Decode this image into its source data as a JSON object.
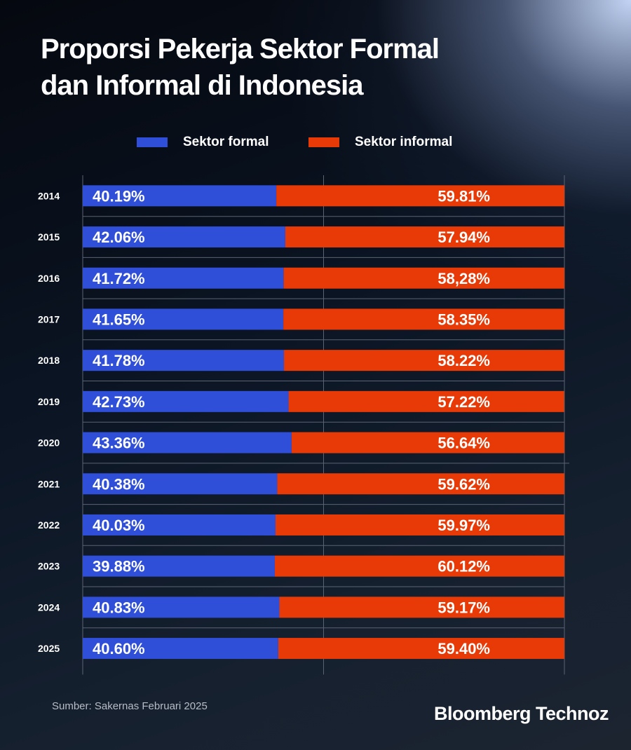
{
  "chart_data": {
    "type": "bar",
    "orientation": "horizontal",
    "stacked": true,
    "title": "Proporsi Pekerja Sektor Formal dan Informal di Indonesia",
    "title_lines": [
      "Proporsi Pekerja Sektor Formal",
      "dan Informal di Indonesia"
    ],
    "categories": [
      "2014",
      "2015",
      "2016",
      "2017",
      "2018",
      "2019",
      "2020",
      "2021",
      "2022",
      "2023",
      "2024",
      "2025"
    ],
    "series": [
      {
        "name": "Sektor formal",
        "color": "#2f4fd8",
        "values": [
          40.19,
          42.06,
          41.72,
          41.65,
          41.78,
          42.73,
          43.36,
          40.38,
          40.03,
          39.88,
          40.83,
          40.6
        ],
        "labels": [
          "40.19%",
          "42.06%",
          "41.72%",
          "41.65%",
          "41.78%",
          "42.73%",
          "43.36%",
          "40.38%",
          "40.03%",
          "39.88%",
          "40.83%",
          "40.60%"
        ]
      },
      {
        "name": "Sektor informal",
        "color": "#e83a06",
        "values": [
          59.81,
          57.94,
          58.28,
          58.35,
          58.22,
          57.22,
          56.64,
          59.62,
          59.97,
          60.12,
          59.17,
          59.4
        ],
        "labels": [
          "59.81%",
          "57.94%",
          "58,28%",
          "58.35%",
          "58.22%",
          "57.22%",
          "56.64%",
          "59.62%",
          "59.97%",
          "60.12%",
          "59.17%",
          "59.40%"
        ]
      }
    ],
    "xlim": [
      0,
      100
    ],
    "grid": true,
    "legend_position": "top-center"
  },
  "source": "Sumber: Sakernas Februari 2025",
  "brand": "Bloomberg Technoz"
}
